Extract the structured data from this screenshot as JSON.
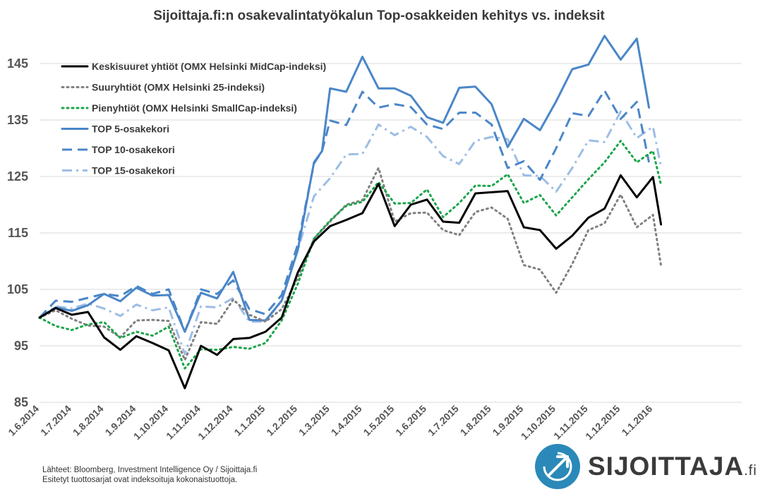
{
  "chart_data": {
    "type": "line",
    "title": "Sijoittaja.fi:n osakevalintatyökalun Top-osakkeiden kehitys vs. indeksit",
    "ylim": [
      85,
      150
    ],
    "yticks": [
      85,
      95,
      105,
      115,
      125,
      135,
      145
    ],
    "grid": "horizontal",
    "legend_position": "top-left",
    "x": [
      0,
      1,
      2,
      3,
      4,
      5,
      6,
      7,
      8,
      9,
      10,
      11,
      12,
      13,
      14,
      15,
      16,
      17,
      18,
      19,
      20,
      21,
      22,
      23,
      24,
      25,
      26,
      27,
      28,
      29,
      30,
      31,
      32,
      33,
      34,
      35,
      36,
      37,
      38,
      39,
      40,
      41,
      42,
      43,
      44,
      45,
      46,
      47,
      48,
      49,
      50,
      51,
      52,
      53,
      54,
      55,
      56,
      57,
      58,
      59,
      60,
      61,
      62,
      63,
      64,
      65,
      66,
      67,
      68,
      69,
      70,
      71,
      72,
      73,
      74,
      75,
      76,
      77,
      78,
      79,
      80,
      81,
      82,
      83,
      84,
      85,
      86,
      87
    ],
    "xtick_labels": [
      {
        "i": 0,
        "label": "1.6.2014"
      },
      {
        "i": 4,
        "label": "1.7.2014"
      },
      {
        "i": 8,
        "label": "1.8.2014"
      },
      {
        "i": 12,
        "label": "1.9.2014"
      },
      {
        "i": 16,
        "label": "1.10.2014"
      },
      {
        "i": 20,
        "label": "1.11.2014"
      },
      {
        "i": 24,
        "label": "1.12.2014"
      },
      {
        "i": 28,
        "label": "1.1.2015"
      },
      {
        "i": 32,
        "label": "1.2.2015"
      },
      {
        "i": 36,
        "label": "1.3.2015"
      },
      {
        "i": 40,
        "label": "1.4.2015"
      },
      {
        "i": 44,
        "label": "1.5.2015"
      },
      {
        "i": 48,
        "label": "1.6.2015"
      },
      {
        "i": 52,
        "label": "1.7.2015"
      },
      {
        "i": 56,
        "label": "1.8.2015"
      },
      {
        "i": 60,
        "label": "1.9.2015"
      },
      {
        "i": 64,
        "label": "1.10.2015"
      },
      {
        "i": 68,
        "label": "1.11.2015"
      },
      {
        "i": 72,
        "label": "1.12.2015"
      },
      {
        "i": 76,
        "label": "1.1.2016"
      }
    ],
    "series": [
      {
        "name": "Keskisuuret yhtiöt (OMX Helsinki MidCap-indeksi)",
        "color": "#000000",
        "dash": "solid",
        "width": 3,
        "points": [
          [
            0,
            100
          ],
          [
            2,
            101.7
          ],
          [
            4,
            100.5
          ],
          [
            6,
            101
          ],
          [
            8,
            96.5
          ],
          [
            10,
            94.3
          ],
          [
            12,
            96.7
          ],
          [
            14,
            95.5
          ],
          [
            16,
            94.2
          ],
          [
            18,
            87.5
          ],
          [
            20,
            95
          ],
          [
            22,
            93.4
          ],
          [
            24,
            96.2
          ],
          [
            26,
            96.4
          ],
          [
            28,
            97.5
          ],
          [
            30,
            100
          ],
          [
            32,
            108
          ],
          [
            34,
            113.5
          ],
          [
            36,
            116.2
          ],
          [
            38,
            117.3
          ],
          [
            40,
            118.5
          ],
          [
            42,
            123.7
          ],
          [
            44,
            116.2
          ],
          [
            46,
            120
          ],
          [
            48,
            120.9
          ],
          [
            50,
            117
          ],
          [
            52,
            116.8
          ],
          [
            54,
            122
          ],
          [
            56,
            122.2
          ],
          [
            58,
            122.4
          ],
          [
            60,
            116
          ],
          [
            62,
            115.5
          ],
          [
            64,
            112.2
          ],
          [
            66,
            114.5
          ],
          [
            68,
            117.7
          ],
          [
            70,
            119.3
          ],
          [
            72,
            125.2
          ],
          [
            74,
            121.3
          ],
          [
            76,
            124.9
          ],
          [
            77,
            116.5
          ]
        ]
      },
      {
        "name": "Suuryhtiöt (OMX Helsinki 25-indeksi)",
        "color": "#808080",
        "dash": "dot",
        "width": 3,
        "points": [
          [
            0,
            100
          ],
          [
            2,
            101.3
          ],
          [
            4,
            99.8
          ],
          [
            6,
            98.6
          ],
          [
            8,
            98.4
          ],
          [
            10,
            96.5
          ],
          [
            12,
            99.5
          ],
          [
            14,
            99.6
          ],
          [
            16,
            99.4
          ],
          [
            18,
            92.5
          ],
          [
            20,
            99.2
          ],
          [
            22,
            98.9
          ],
          [
            24,
            103.2
          ],
          [
            26,
            100.5
          ],
          [
            28,
            99.3
          ],
          [
            30,
            101.5
          ],
          [
            32,
            107
          ],
          [
            34,
            114
          ],
          [
            36,
            117
          ],
          [
            38,
            120
          ],
          [
            40,
            120.8
          ],
          [
            42,
            126.5
          ],
          [
            44,
            117
          ],
          [
            46,
            118.5
          ],
          [
            48,
            118.6
          ],
          [
            50,
            115.5
          ],
          [
            52,
            114.6
          ],
          [
            54,
            118.7
          ],
          [
            56,
            119.5
          ],
          [
            58,
            117.5
          ],
          [
            60,
            109.3
          ],
          [
            62,
            108.5
          ],
          [
            64,
            104.4
          ],
          [
            66,
            109.5
          ],
          [
            68,
            115.5
          ],
          [
            70,
            116.7
          ],
          [
            72,
            121.8
          ],
          [
            74,
            116
          ],
          [
            76,
            118.2
          ],
          [
            77,
            109.2
          ]
        ]
      },
      {
        "name": "Pienyhtiöt (OMX Helsinki SmallCap-indeksi)",
        "color": "#1aa64a",
        "dash": "dot",
        "width": 3,
        "points": [
          [
            0,
            100
          ],
          [
            2,
            98.5
          ],
          [
            4,
            97.8
          ],
          [
            6,
            98.8
          ],
          [
            8,
            99.2
          ],
          [
            10,
            96.4
          ],
          [
            12,
            97.5
          ],
          [
            14,
            96.8
          ],
          [
            16,
            98.4
          ],
          [
            18,
            91
          ],
          [
            20,
            94.4
          ],
          [
            22,
            94.3
          ],
          [
            24,
            94.8
          ],
          [
            26,
            94.5
          ],
          [
            28,
            95.5
          ],
          [
            30,
            99.5
          ],
          [
            32,
            106
          ],
          [
            34,
            114
          ],
          [
            36,
            117.2
          ],
          [
            38,
            119.8
          ],
          [
            40,
            120.5
          ],
          [
            42,
            124
          ],
          [
            44,
            120.2
          ],
          [
            46,
            120.3
          ],
          [
            48,
            122.7
          ],
          [
            50,
            117.8
          ],
          [
            52,
            120.3
          ],
          [
            54,
            123.4
          ],
          [
            56,
            123.3
          ],
          [
            58,
            125.4
          ],
          [
            60,
            120.3
          ],
          [
            62,
            121.7
          ],
          [
            64,
            118.1
          ],
          [
            66,
            121.3
          ],
          [
            68,
            124.5
          ],
          [
            70,
            127.5
          ],
          [
            72,
            131.3
          ],
          [
            74,
            127.5
          ],
          [
            76,
            129.5
          ],
          [
            77,
            123.5
          ]
        ]
      },
      {
        "name": "TOP 5-osakekori",
        "color": "#4a86c8",
        "dash": "solid",
        "width": 3,
        "points": [
          [
            0,
            100
          ],
          [
            2,
            101.8
          ],
          [
            4,
            101.2
          ],
          [
            6,
            102.2
          ],
          [
            8,
            104.2
          ],
          [
            10,
            102.9
          ],
          [
            12,
            105.3
          ],
          [
            14,
            103.9
          ],
          [
            16,
            104
          ],
          [
            18,
            97.5
          ],
          [
            20,
            104.4
          ],
          [
            22,
            103.4
          ],
          [
            24,
            108.1
          ],
          [
            26,
            99.6
          ],
          [
            28,
            99.5
          ],
          [
            30,
            103
          ],
          [
            32,
            112
          ],
          [
            34,
            127.5
          ],
          [
            35,
            129.5
          ],
          [
            36,
            140.6
          ],
          [
            38,
            140
          ],
          [
            40,
            146.2
          ],
          [
            42,
            140.6
          ],
          [
            44,
            140.6
          ],
          [
            46,
            139.3
          ],
          [
            48,
            135.5
          ],
          [
            50,
            134.5
          ],
          [
            52,
            140.7
          ],
          [
            54,
            140.9
          ],
          [
            56,
            137.8
          ],
          [
            58,
            130.2
          ],
          [
            60,
            135.2
          ],
          [
            62,
            133.2
          ],
          [
            64,
            138.3
          ],
          [
            66,
            144
          ],
          [
            68,
            144.8
          ],
          [
            70,
            149.9
          ],
          [
            72,
            145.7
          ],
          [
            74,
            149.4
          ],
          [
            75.5,
            137.2
          ]
        ]
      },
      {
        "name": "TOP 10-osakekori",
        "color": "#4a86c8",
        "dash": "longdash",
        "width": 3,
        "points": [
          [
            0,
            100
          ],
          [
            2,
            103
          ],
          [
            4,
            102.8
          ],
          [
            6,
            103.5
          ],
          [
            8,
            104.2
          ],
          [
            10,
            103.8
          ],
          [
            12,
            105.6
          ],
          [
            14,
            104.2
          ],
          [
            16,
            105
          ],
          [
            18,
            97.5
          ],
          [
            20,
            105
          ],
          [
            22,
            104.2
          ],
          [
            24,
            106.6
          ],
          [
            26,
            101.5
          ],
          [
            28,
            100.6
          ],
          [
            30,
            104
          ],
          [
            32,
            113
          ],
          [
            34,
            127.3
          ],
          [
            35,
            129.5
          ],
          [
            36,
            134.9
          ],
          [
            38,
            134.1
          ],
          [
            40,
            140
          ],
          [
            42,
            137.2
          ],
          [
            44,
            137.8
          ],
          [
            46,
            137.3
          ],
          [
            48,
            134.2
          ],
          [
            50,
            133.4
          ],
          [
            52,
            136.3
          ],
          [
            54,
            136.3
          ],
          [
            56,
            134.2
          ],
          [
            58,
            126.5
          ],
          [
            60,
            127.7
          ],
          [
            62,
            124.4
          ],
          [
            64,
            130
          ],
          [
            66,
            136.2
          ],
          [
            68,
            135.7
          ],
          [
            70,
            140.2
          ],
          [
            72,
            135.2
          ],
          [
            74,
            138.2
          ],
          [
            75.5,
            127.5
          ]
        ]
      },
      {
        "name": "TOP 15-osakekori",
        "color": "#9dbde6",
        "dash": "dashdot",
        "width": 3,
        "points": [
          [
            0,
            100
          ],
          [
            2,
            102
          ],
          [
            4,
            101.6
          ],
          [
            6,
            102.5
          ],
          [
            8,
            101.6
          ],
          [
            10,
            100.3
          ],
          [
            12,
            102.3
          ],
          [
            14,
            101.3
          ],
          [
            16,
            101.8
          ],
          [
            18,
            93.5
          ],
          [
            20,
            102
          ],
          [
            22,
            101.8
          ],
          [
            24,
            103.5
          ],
          [
            26,
            99.3
          ],
          [
            28,
            99.3
          ],
          [
            30,
            103
          ],
          [
            32,
            112
          ],
          [
            34,
            121.5
          ],
          [
            36,
            124.7
          ],
          [
            38,
            128.9
          ],
          [
            40,
            129
          ],
          [
            42,
            134.2
          ],
          [
            44,
            132.3
          ],
          [
            46,
            133.8
          ],
          [
            48,
            132
          ],
          [
            50,
            128.6
          ],
          [
            52,
            127.2
          ],
          [
            54,
            131.3
          ],
          [
            56,
            132
          ],
          [
            58,
            131.6
          ],
          [
            60,
            125.2
          ],
          [
            62,
            125.1
          ],
          [
            64,
            122.3
          ],
          [
            66,
            126.5
          ],
          [
            68,
            131.4
          ],
          [
            70,
            131.1
          ],
          [
            72,
            136.5
          ],
          [
            74,
            131.8
          ],
          [
            76,
            133.8
          ],
          [
            77,
            126.7
          ]
        ]
      }
    ]
  },
  "footer": {
    "line1": "Lähteet: Bloomberg, Investment Intelligence Oy / Sijoittaja.fi",
    "line2": "Esitetyt tuottosarjat ovat indeksoituja kokonaistuottoja."
  },
  "logo": {
    "text": "SIJOITTAJA",
    "suffix": ".fi",
    "icon": "arrow-circle-logo-icon",
    "circle_color": "#2a89b8"
  }
}
